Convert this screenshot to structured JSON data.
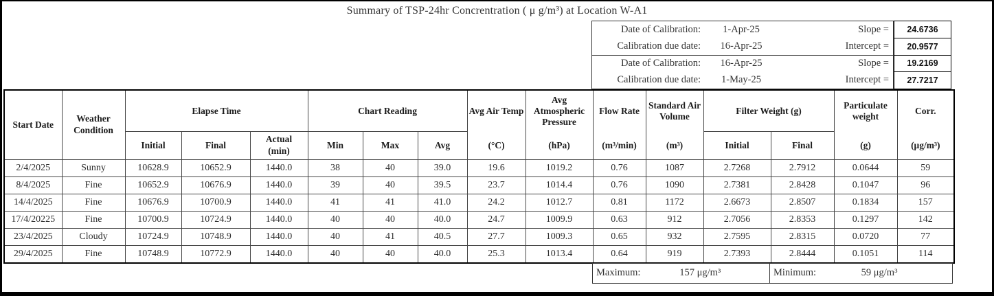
{
  "title": {
    "text": "Summary of TSP-24hr Concrentration ( μ g/m³) at Location W-A1"
  },
  "calibration": {
    "rows": [
      {
        "label": "Date of Calibration:",
        "date": "1-Apr-25",
        "param": "Slope =",
        "value": "24.6736"
      },
      {
        "label": "Calibration due date:",
        "date": "16-Apr-25",
        "param": "Intercept =",
        "value": "20.9577"
      },
      {
        "label": "Date of Calibration:",
        "date": "16-Apr-25",
        "param": "Slope =",
        "value": "19.2169"
      },
      {
        "label": "Calibration due date:",
        "date": "1-May-25",
        "param": "Intercept =",
        "value": "27.7217"
      }
    ]
  },
  "table": {
    "headers": {
      "start_date": "Start Date",
      "weather_condition": "Weather\nCondition",
      "elapse_time": "Elapse Time",
      "chart_reading": "Chart Reading",
      "avg_air_temp": "Avg Air Temp",
      "avg_air_temp_unit": "(°C)",
      "avg_atm_pressure": "Avg Atmospheric Pressure",
      "avg_atm_pressure_unit": "(hPa)",
      "flow_rate": "Flow Rate",
      "flow_rate_unit": "(m³/min)",
      "standard_air_volume": "Standard Air Volume",
      "standard_air_volume_unit": "(m³)",
      "filter_weight": "Filter Weight (g)",
      "particulate_weight": "Particulate weight",
      "particulate_weight_unit": "(g)",
      "corr": "Corr.",
      "corr_unit": "(μg/m³)",
      "sub_initial": "Initial",
      "sub_final": "Final",
      "sub_actual": "Actual\n(min)",
      "sub_min": "Min",
      "sub_max": "Max",
      "sub_avg": "Avg",
      "fw_initial": "Initial",
      "fw_final": "Final"
    },
    "rows": [
      [
        "2/4/2025",
        "Sunny",
        "10628.9",
        "10652.9",
        "1440.0",
        "38",
        "40",
        "39.0",
        "19.6",
        "1019.2",
        "0.76",
        "1087",
        "2.7268",
        "2.7912",
        "0.0644",
        "59"
      ],
      [
        "8/4/2025",
        "Fine",
        "10652.9",
        "10676.9",
        "1440.0",
        "39",
        "40",
        "39.5",
        "23.7",
        "1014.4",
        "0.76",
        "1090",
        "2.7381",
        "2.8428",
        "0.1047",
        "96"
      ],
      [
        "14/4/2025",
        "Fine",
        "10676.9",
        "10700.9",
        "1440.0",
        "41",
        "41",
        "41.0",
        "24.2",
        "1012.7",
        "0.81",
        "1172",
        "2.6673",
        "2.8507",
        "0.1834",
        "157"
      ],
      [
        "17/4/20225",
        "Fine",
        "10700.9",
        "10724.9",
        "1440.0",
        "40",
        "40",
        "40.0",
        "24.7",
        "1009.9",
        "0.63",
        "912",
        "2.7056",
        "2.8353",
        "0.1297",
        "142"
      ],
      [
        "23/4/2025",
        "Cloudy",
        "10724.9",
        "10748.9",
        "1440.0",
        "40",
        "41",
        "40.5",
        "27.7",
        "1009.3",
        "0.65",
        "932",
        "2.7595",
        "2.8315",
        "0.0720",
        "77"
      ],
      [
        "29/4/2025",
        "Fine",
        "10748.9",
        "10772.9",
        "1440.0",
        "40",
        "40",
        "40.0",
        "25.3",
        "1013.4",
        "0.64",
        "919",
        "2.7393",
        "2.8444",
        "0.1051",
        "114"
      ]
    ],
    "summary": {
      "maximum_label": "Maximum:",
      "maximum_value": "157 μg/m³",
      "minimum_label": "Minimum:",
      "minimum_value": "59 μg/m³"
    }
  }
}
